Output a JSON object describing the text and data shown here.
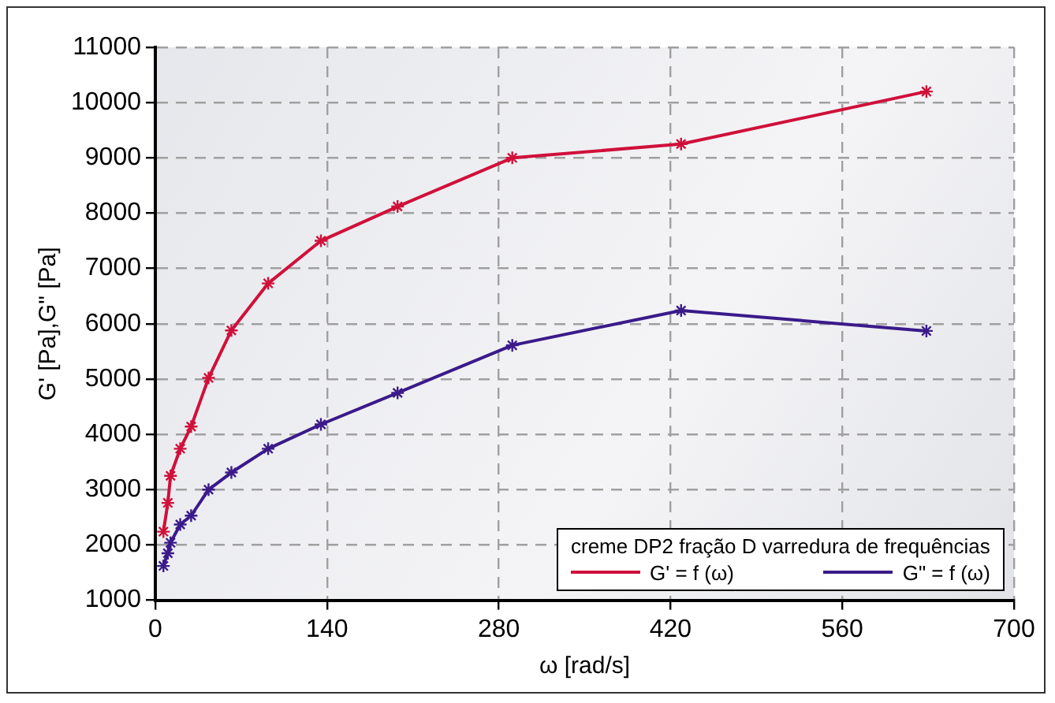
{
  "chart_data": {
    "type": "line",
    "xlabel": "ω [rad/s]",
    "ylabel": "G' [Pa],G\" [Pa]",
    "legend_title": "creme DP2 fração D varredura de frequências",
    "x": [
      6.6,
      10.2,
      12.4,
      20.3,
      29.2,
      43.4,
      62,
      92,
      135,
      197.5,
      291,
      428.6,
      628.6
    ],
    "series": [
      {
        "name": "G' = f (ω)",
        "color": "#d0103a",
        "values": [
          2240,
          2760,
          3250,
          3740,
          4140,
          5020,
          5880,
          6730,
          7500,
          8120,
          9000,
          9250,
          10200
        ]
      },
      {
        "name": "G\" = f (ω)",
        "color": "#3a1a8a",
        "values": [
          1620,
          1850,
          2040,
          2370,
          2530,
          3000,
          3310,
          3740,
          4180,
          4750,
          5610,
          6240,
          5870
        ]
      }
    ],
    "xlim": [
      0,
      700
    ],
    "xticks": [
      0,
      140,
      280,
      420,
      560,
      700
    ],
    "ylim": [
      1000,
      11000
    ],
    "yticks": [
      1000,
      2000,
      3000,
      4000,
      5000,
      6000,
      7000,
      8000,
      9000,
      10000,
      11000
    ],
    "grid": true,
    "legend": "bottom right",
    "marker": "cross",
    "line_style": "solid"
  }
}
